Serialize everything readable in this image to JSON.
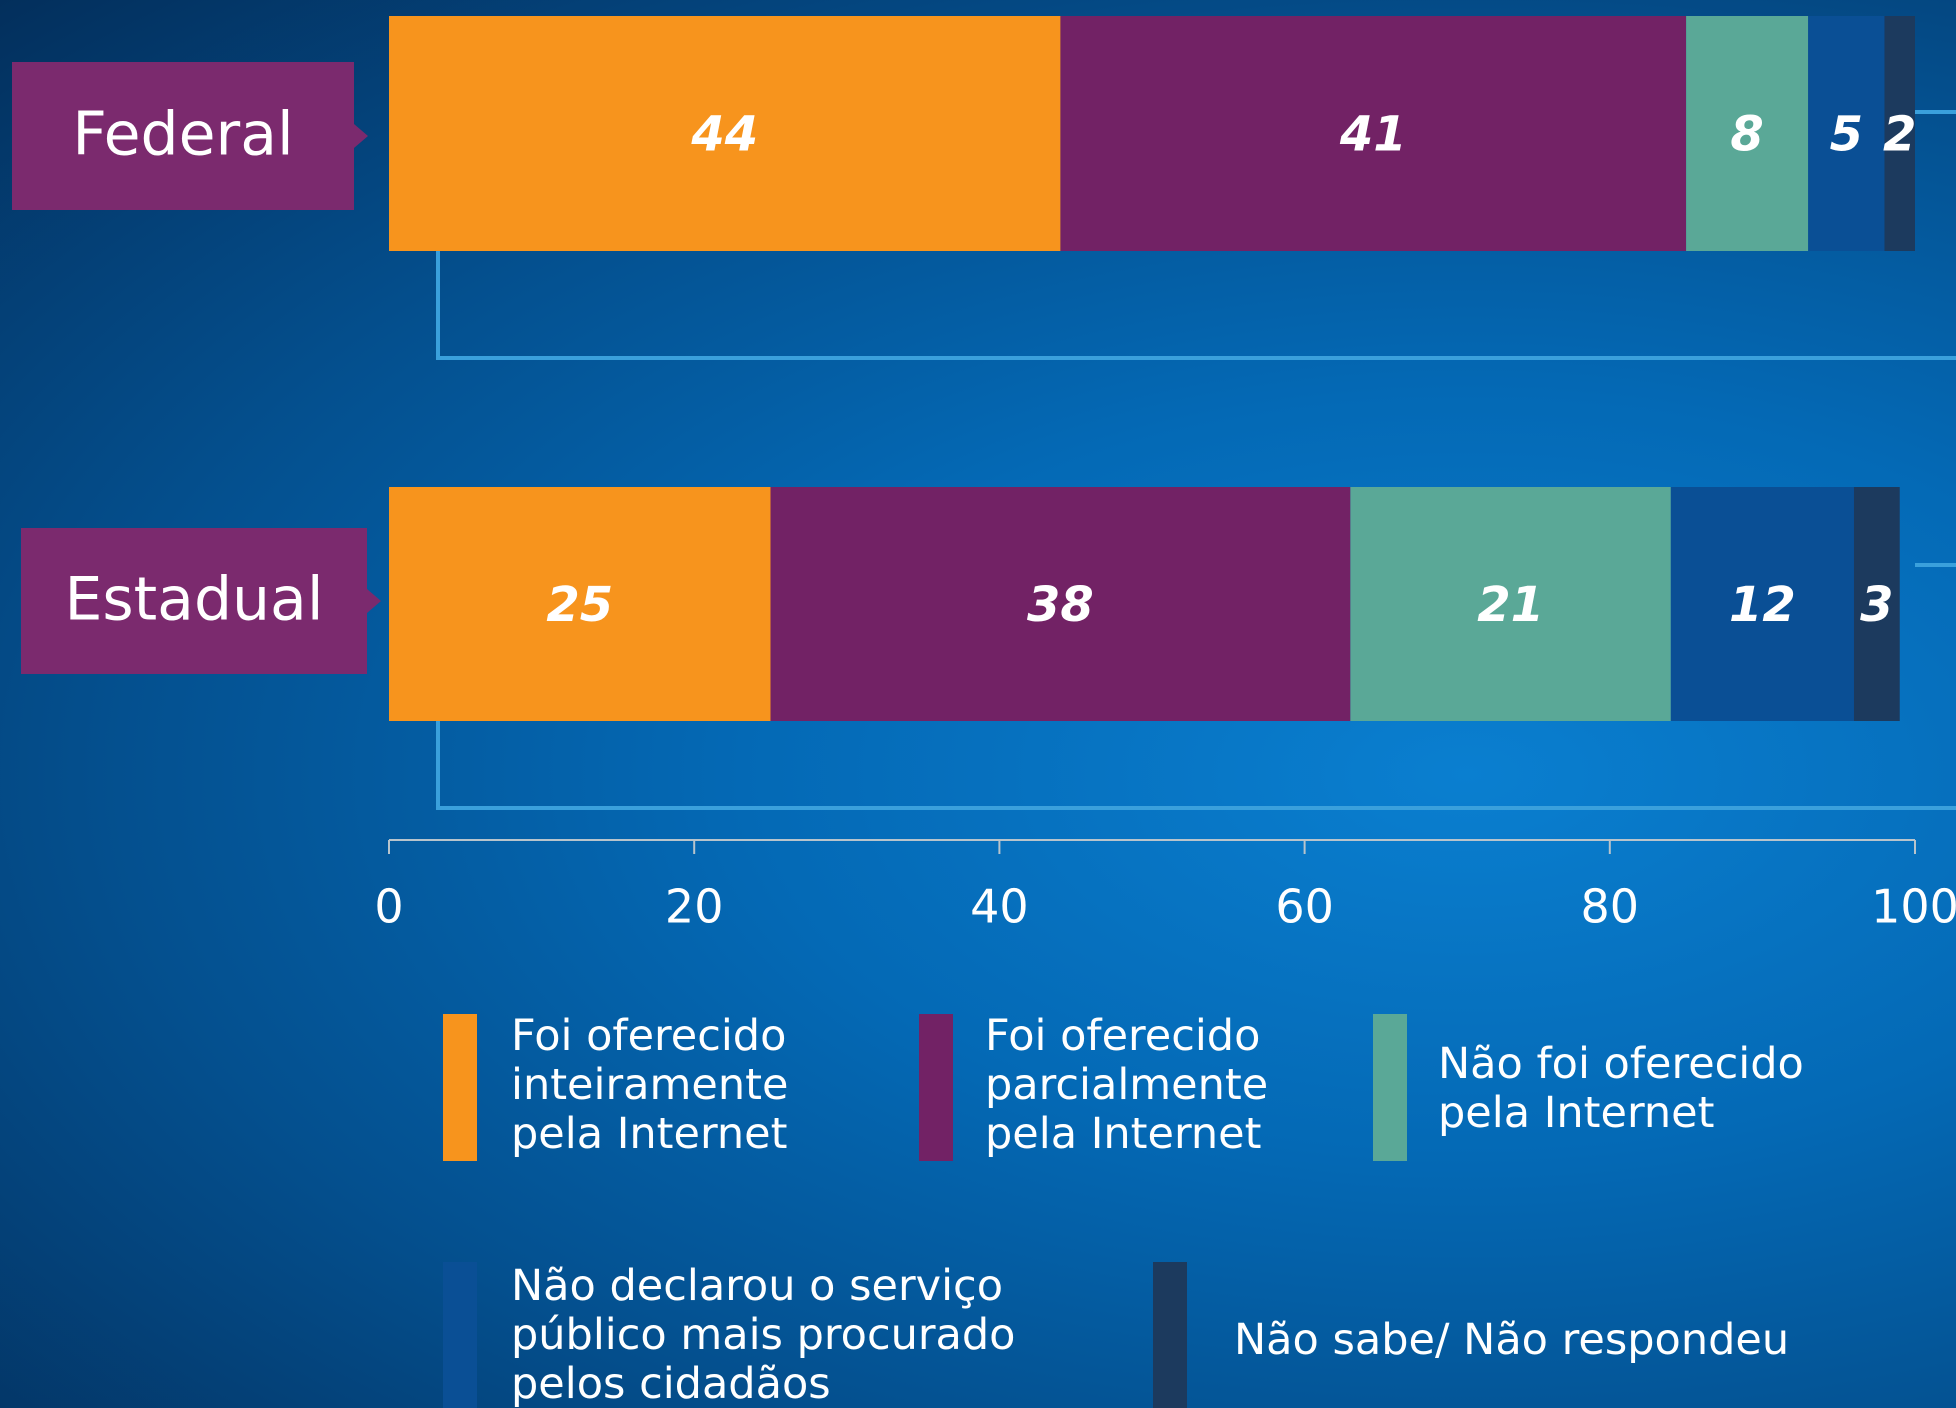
{
  "chart_data": {
    "type": "stacked-bar-horizontal",
    "categories": [
      "Federal",
      "Estadual"
    ],
    "series": [
      {
        "name": "Foi oferecido inteiramente pela Internet",
        "color": "#f7941d",
        "values": [
          44,
          25
        ]
      },
      {
        "name": "Foi oferecido parcialmente pela Internet",
        "color": "#722265",
        "values": [
          41,
          38
        ]
      },
      {
        "name": "Não foi oferecido pela Internet",
        "color": "#5aa897",
        "values": [
          8,
          21
        ]
      },
      {
        "name": "Não declarou o serviço público mais procurado pelos cidadãos",
        "color": "#0a4f95",
        "values": [
          5,
          12
        ]
      },
      {
        "name": "Não sabe/ Não respondeu",
        "color": "#1c3a5e",
        "values": [
          2,
          3
        ]
      }
    ],
    "xlim": [
      0,
      100
    ],
    "xticks": [
      0,
      20,
      40,
      60,
      80,
      100
    ]
  }
}
